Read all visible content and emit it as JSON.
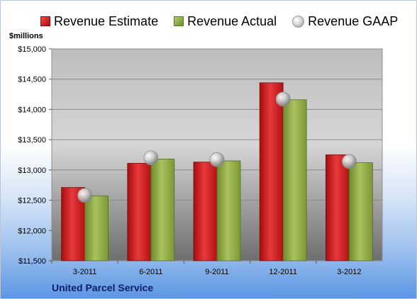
{
  "legend": [
    {
      "label": "Revenue Estimate",
      "icon": "red-square-icon"
    },
    {
      "label": "Revenue Actual",
      "icon": "green-square-icon"
    },
    {
      "label": "Revenue GAAP",
      "icon": "gray-sphere-icon"
    }
  ],
  "unit_label": "$millions",
  "company": "United Parcel Service",
  "colors": {
    "estimate": "#c8181b",
    "actual": "#8aa83f",
    "gaap": "#c0c0c0",
    "company_text": "#0d1e66"
  },
  "chart_data": {
    "type": "bar",
    "categories": [
      "3-2011",
      "6-2011",
      "9-2011",
      "12-2011",
      "3-2012"
    ],
    "series": [
      {
        "name": "Revenue Estimate",
        "type": "bar",
        "values": [
          12710,
          13110,
          13130,
          14440,
          13250
        ]
      },
      {
        "name": "Revenue Actual",
        "type": "bar",
        "values": [
          12570,
          13180,
          13150,
          14160,
          13120
        ]
      },
      {
        "name": "Revenue GAAP",
        "type": "scatter",
        "values": [
          12580,
          13200,
          13170,
          14170,
          13140
        ]
      }
    ],
    "ylim": [
      11500,
      15000
    ],
    "yticks": [
      11500,
      12000,
      12500,
      13000,
      13500,
      14000,
      14500,
      15000
    ],
    "ytick_labels": [
      "$11,500",
      "$12,000",
      "$12,500",
      "$13,000",
      "$13,500",
      "$14,000",
      "$14,500",
      "$15,000"
    ],
    "grid": true,
    "legend_position": "top",
    "title": "",
    "xlabel": "",
    "ylabel": ""
  }
}
